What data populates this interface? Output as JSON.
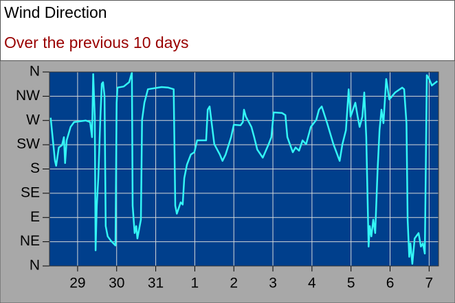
{
  "chart_data": {
    "type": "line",
    "title": "Wind Direction",
    "subtitle": "Over the previous 10 days",
    "color": "#33f5f5",
    "background": "#003f8c",
    "grid": true,
    "x": [
      -0.69,
      -0.58,
      -0.55,
      -0.48,
      -0.4,
      -0.35,
      -0.32,
      -0.28,
      -0.18,
      -0.09,
      0.21,
      0.32,
      0.37,
      0.4,
      0.44,
      0.46,
      0.49,
      0.53,
      0.58,
      0.62,
      0.65,
      0.69,
      0.72,
      0.77,
      0.86,
      0.97,
      1.0,
      1.02,
      1.18,
      1.32,
      1.39,
      1.41,
      1.46,
      1.5,
      1.53,
      1.62,
      1.65,
      1.71,
      1.8,
      2.15,
      2.32,
      2.46,
      2.5,
      2.54,
      2.64,
      2.69,
      2.73,
      2.8,
      2.9,
      2.99,
      3.06,
      3.29,
      3.33,
      3.38,
      3.43,
      3.5,
      3.64,
      3.71,
      3.79,
      3.93,
      4.0,
      4.17,
      4.23,
      4.26,
      4.31,
      4.45,
      4.52,
      4.6,
      4.74,
      4.88,
      4.96,
      5.02,
      5.23,
      5.32,
      5.37,
      5.51,
      5.58,
      5.67,
      5.76,
      5.85,
      5.97,
      6.11,
      6.18,
      6.25,
      6.39,
      6.55,
      6.71,
      6.78,
      6.87,
      6.94,
      6.99,
      7.11,
      7.17,
      7.22,
      7.29,
      7.34,
      7.39,
      7.45,
      7.48,
      7.52,
      7.57,
      7.62,
      7.68,
      7.73,
      7.78,
      7.83,
      7.9,
      7.98,
      8.13,
      8.31,
      8.36,
      8.42,
      8.45,
      8.49,
      8.52,
      8.57,
      8.63,
      8.73,
      8.79,
      8.84,
      8.89,
      8.94,
      9.0,
      9.07,
      9.21
    ],
    "values": [
      275,
      195,
      186,
      220,
      224,
      239,
      191,
      233,
      258,
      267,
      270,
      267,
      239,
      356,
      277,
      29,
      112,
      163,
      271,
      338,
      341,
      315,
      74,
      55,
      46,
      38,
      303,
      331,
      333,
      341,
      359,
      112,
      61,
      74,
      51,
      86,
      271,
      303,
      328,
      332,
      331,
      328,
      112,
      97,
      118,
      114,
      163,
      188,
      207,
      211,
      233,
      233,
      290,
      296,
      267,
      226,
      207,
      195,
      207,
      239,
      262,
      261,
      267,
      290,
      277,
      258,
      239,
      216,
      201,
      224,
      239,
      285,
      284,
      280,
      239,
      211,
      220,
      214,
      233,
      226,
      258,
      271,
      290,
      296,
      265,
      226,
      195,
      226,
      252,
      328,
      277,
      303,
      277,
      258,
      277,
      322,
      239,
      36,
      74,
      55,
      86,
      61,
      176,
      252,
      290,
      265,
      347,
      309,
      322,
      331,
      328,
      265,
      86,
      17,
      42,
      4,
      51,
      61,
      36,
      42,
      23,
      354,
      347,
      335,
      343
    ],
    "xlim": [
      -0.72,
      9.24
    ],
    "xticks": [
      {
        "value": 0,
        "label": "29"
      },
      {
        "value": 1,
        "label": "30"
      },
      {
        "value": 2,
        "label": "31"
      },
      {
        "value": 3,
        "label": "1"
      },
      {
        "value": 4,
        "label": "2"
      },
      {
        "value": 5,
        "label": "3"
      },
      {
        "value": 6,
        "label": "4"
      },
      {
        "value": 7,
        "label": "5"
      },
      {
        "value": 8,
        "label": "6"
      },
      {
        "value": 9,
        "label": "7"
      }
    ],
    "ylim": [
      0,
      360
    ],
    "yticks": [
      {
        "value": 0,
        "label": "N"
      },
      {
        "value": 45,
        "label": "NE"
      },
      {
        "value": 90,
        "label": "E"
      },
      {
        "value": 135,
        "label": "SE"
      },
      {
        "value": 180,
        "label": "S"
      },
      {
        "value": 225,
        "label": "SW"
      },
      {
        "value": 270,
        "label": "W"
      },
      {
        "value": 315,
        "label": "NW"
      },
      {
        "value": 360,
        "label": "N"
      }
    ]
  }
}
